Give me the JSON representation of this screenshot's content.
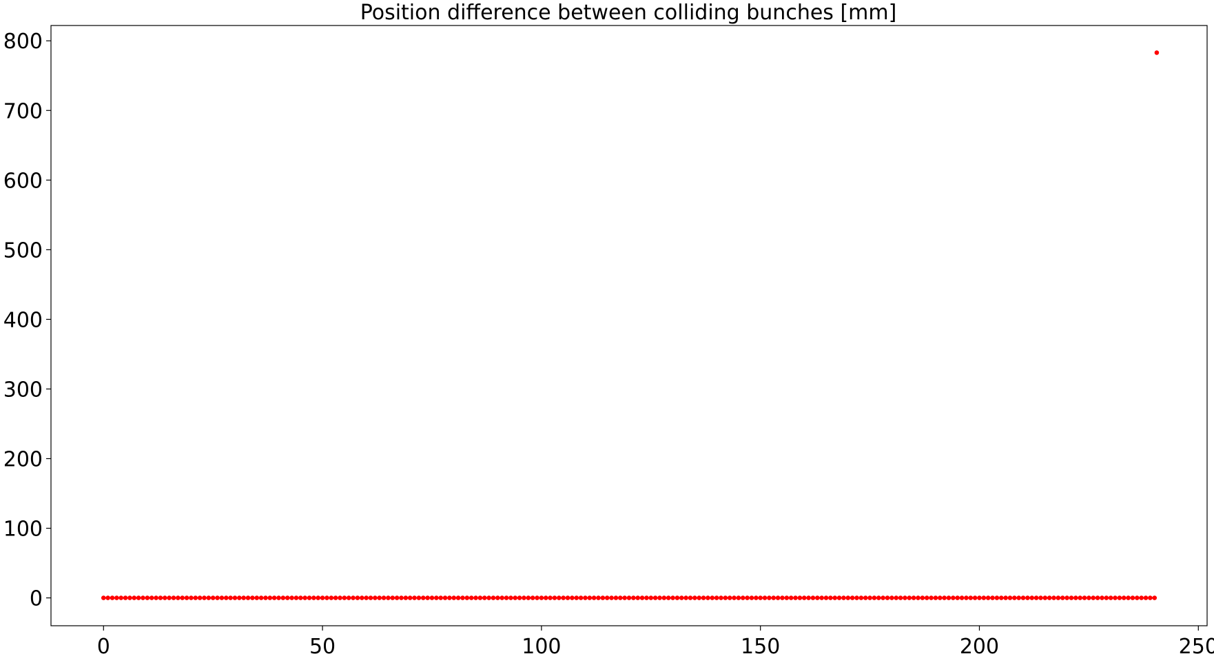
{
  "chart_data": {
    "type": "scatter",
    "title": "Position difference between colliding bunches [mm]",
    "xlabel": "",
    "ylabel": "",
    "xlim": [
      -12,
      252
    ],
    "ylim": [
      -40,
      822
    ],
    "xticks": [
      0,
      50,
      100,
      150,
      200,
      250
    ],
    "xtick_labels": [
      "0",
      "50",
      "100",
      "150",
      "200",
      "250"
    ],
    "yticks": [
      0,
      100,
      200,
      300,
      400,
      500,
      600,
      700,
      800
    ],
    "ytick_labels": [
      "0",
      "100",
      "200",
      "300",
      "400",
      "500",
      "600",
      "700",
      "800"
    ],
    "grid": false,
    "legend": false,
    "marker_color": "#ff0000",
    "baseline_series": {
      "x_start": 0,
      "x_end": 240,
      "x_step": 1,
      "y": 0
    },
    "outliers": [
      {
        "x": 240.5,
        "y": 783
      }
    ]
  }
}
